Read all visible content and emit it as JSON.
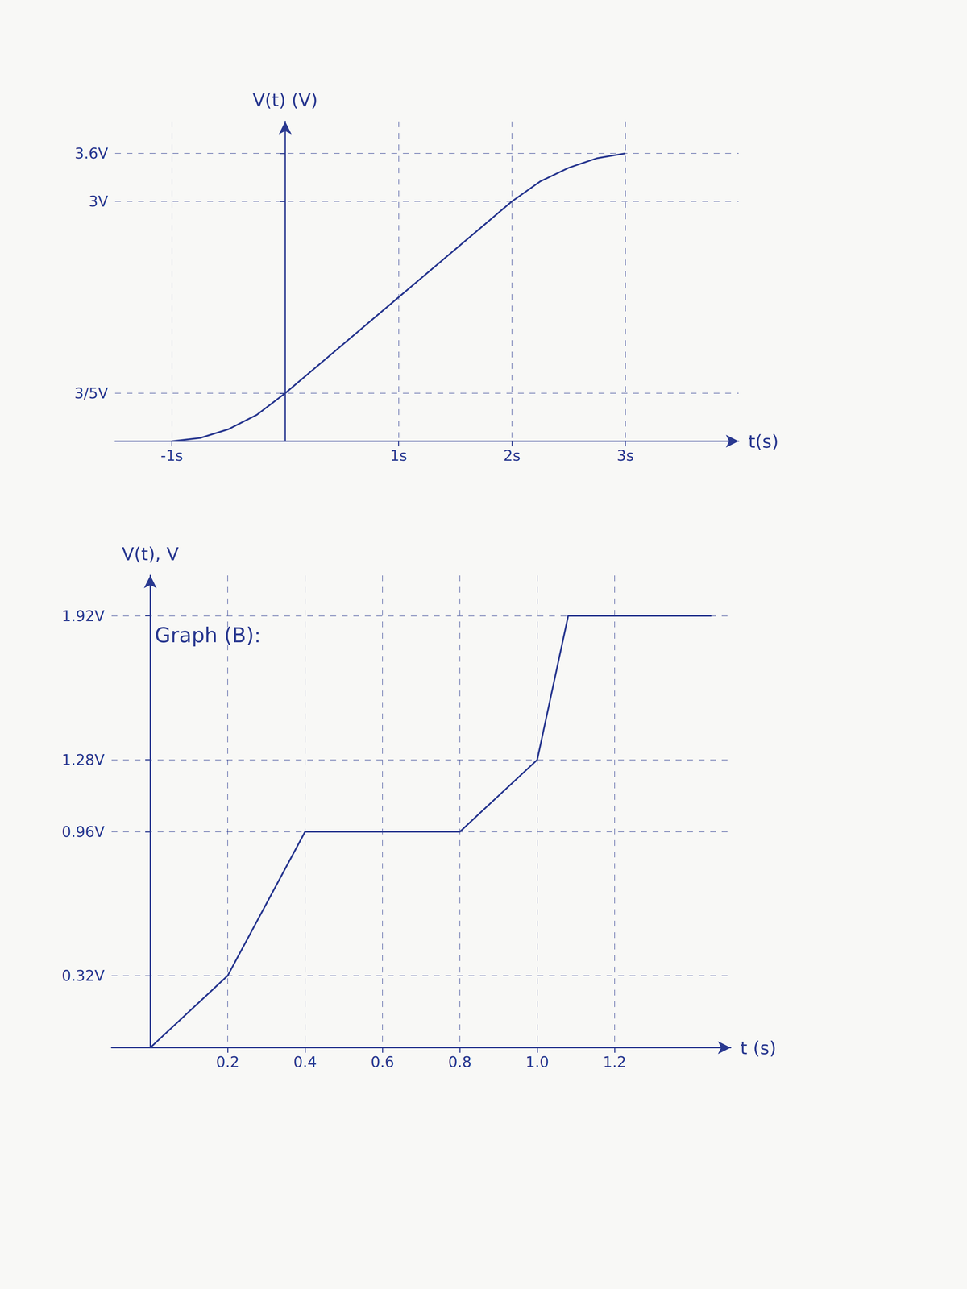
{
  "chart_data": [
    {
      "type": "line",
      "xlabel": "t(s)",
      "ylabel": "V(t) (V)",
      "x": [
        -1,
        -0.75,
        -0.5,
        -0.25,
        0,
        1,
        2,
        2.25,
        2.5,
        2.75,
        3
      ],
      "values": [
        0,
        0.04,
        0.15,
        0.33,
        0.6,
        1.8,
        3,
        3.25,
        3.42,
        3.54,
        3.6
      ],
      "color": "#2a3990",
      "xlim": [
        -1.5,
        4
      ],
      "ylim": [
        0,
        4
      ],
      "xticks": [
        {
          "value": -1,
          "label": "-1s"
        },
        {
          "value": 1,
          "label": "1s"
        },
        {
          "value": 2,
          "label": "2s"
        },
        {
          "value": 3,
          "label": "3s"
        }
      ],
      "yticks": [
        {
          "value": 0.6,
          "label": "3/5V"
        },
        {
          "value": 3,
          "label": "3V"
        },
        {
          "value": 3.6,
          "label": "3.6V"
        }
      ],
      "grid": true,
      "marker": "none"
    },
    {
      "type": "line",
      "title": "Graph (B):",
      "xlabel": "t (s)",
      "ylabel": "V(t), V",
      "x": [
        0,
        0.2,
        0.4,
        0.6,
        0.8,
        1.0,
        1.08,
        1.45
      ],
      "values": [
        0,
        0.32,
        0.96,
        0.96,
        0.96,
        1.28,
        1.92,
        1.92
      ],
      "color": "#2a3990",
      "xlim": [
        -0.1,
        1.5
      ],
      "ylim": [
        0,
        2.1
      ],
      "xticks": [
        0.2,
        0.4,
        0.6,
        0.8,
        {
          "value": 1,
          "label": "1.0"
        },
        1.2
      ],
      "yticks": [
        {
          "value": 0.32,
          "label": "0.32V"
        },
        {
          "value": 0.96,
          "label": "0.96V"
        },
        {
          "value": 1.28,
          "label": "1.28V"
        },
        {
          "value": 1.92,
          "label": "1.92V"
        }
      ],
      "grid": true,
      "marker": "none"
    }
  ]
}
